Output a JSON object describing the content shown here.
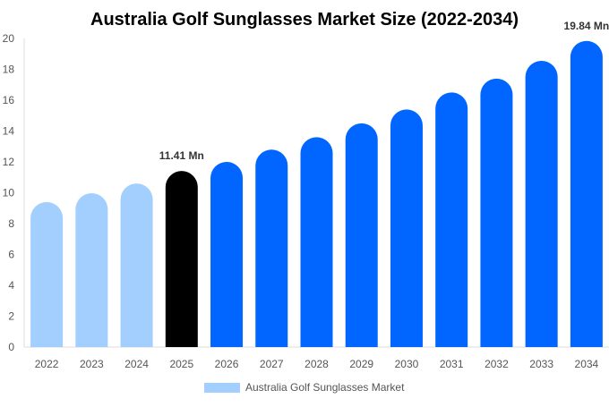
{
  "chart_data": {
    "type": "bar",
    "title": "Australia Golf Sunglasses Market Size (2022-2034)",
    "categories": [
      "2022",
      "2023",
      "2024",
      "2025",
      "2026",
      "2027",
      "2028",
      "2029",
      "2030",
      "2031",
      "2032",
      "2033",
      "2034"
    ],
    "series": [
      {
        "name": "Australia Golf Sunglasses Market",
        "values": [
          9.4,
          9.97,
          10.6,
          11.41,
          12.0,
          12.8,
          13.6,
          14.5,
          15.4,
          16.5,
          17.4,
          18.55,
          19.84
        ]
      }
    ],
    "data_labels": {
      "3": "11.41 Mn",
      "12": "19.84 Mn"
    },
    "ylim": [
      0,
      20
    ],
    "yticks": [
      0,
      2,
      4,
      6,
      8,
      10,
      12,
      14,
      16,
      18,
      20
    ],
    "grid": false,
    "legend": "bottom",
    "colors": {
      "historical": "#a3cfff",
      "current": "#000000",
      "forecast": "#0066ff"
    }
  }
}
